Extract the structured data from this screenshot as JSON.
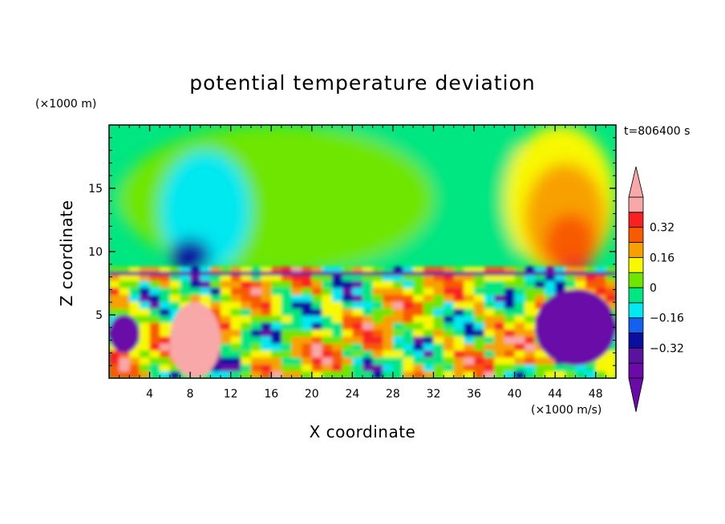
{
  "chart_data": {
    "type": "heatmap",
    "title": "potential temperature deviation",
    "xlabel": "X coordinate",
    "ylabel": "Z coordinate",
    "x_units": "(×1000 m/s)",
    "y_units": "(×1000 m)",
    "time_label": "t=806400 s",
    "xlim": [
      0,
      50
    ],
    "ylim": [
      0,
      20
    ],
    "x_ticks": [
      4,
      8,
      12,
      16,
      20,
      24,
      28,
      32,
      36,
      40,
      44,
      48
    ],
    "x_tick_labels": [
      "4",
      "8",
      "12",
      "16",
      "20",
      "24",
      "28",
      "32",
      "36",
      "40",
      "44",
      "48"
    ],
    "y_ticks": [
      5,
      10,
      15
    ],
    "y_tick_labels": [
      "5",
      "10",
      "15"
    ],
    "colorbar": {
      "levels": [
        -0.48,
        -0.4,
        -0.32,
        -0.24,
        -0.16,
        -0.08,
        0,
        0.08,
        0.16,
        0.24,
        0.32,
        0.4
      ],
      "labeled_levels": [
        0.32,
        0.16,
        0,
        -0.16,
        -0.32
      ],
      "labels": [
        "0.32",
        "0.16",
        "0",
        "−0.16",
        "−0.32"
      ],
      "colors": [
        "#6a0aa8",
        "#5c12a0",
        "#0a0fa0",
        "#1660f0",
        "#00e8f0",
        "#00e680",
        "#6ee600",
        "#f8f800",
        "#f8a000",
        "#f85a00",
        "#f82020",
        "#f8a8a8"
      ],
      "over_color": "#f8a8a8",
      "under_color": "#6a0aa8"
    },
    "field_regions": [
      {
        "level": -0.08,
        "x": [
          0,
          50
        ],
        "z": [
          8.3,
          20
        ]
      },
      {
        "level": 0.0,
        "x": [
          1,
          32
        ],
        "z": [
          8.3,
          20
        ]
      },
      {
        "level": -0.16,
        "x": [
          5,
          14
        ],
        "z": [
          8.5,
          18
        ]
      },
      {
        "level": -0.32,
        "x": [
          6,
          10
        ],
        "z": [
          8.5,
          11
        ]
      },
      {
        "level": 0.08,
        "x": [
          39,
          50
        ],
        "z": [
          8.3,
          20
        ]
      },
      {
        "level": 0.16,
        "x": [
          41,
          49
        ],
        "z": [
          8.3,
          17
        ]
      },
      {
        "level": 0.24,
        "x": [
          43,
          48
        ],
        "z": [
          8.3,
          13
        ]
      },
      {
        "level": 0.32,
        "x": [
          44.5,
          47.5
        ],
        "z": [
          8.3,
          9.5
        ]
      },
      {
        "level": 0.4,
        "x": [
          6,
          11
        ],
        "z": [
          0,
          6
        ]
      },
      {
        "level": -0.48,
        "x": [
          0,
          3
        ],
        "z": [
          2,
          5
        ]
      },
      {
        "level": -0.48,
        "x": [
          42,
          50
        ],
        "z": [
          1,
          7
        ]
      }
    ]
  }
}
